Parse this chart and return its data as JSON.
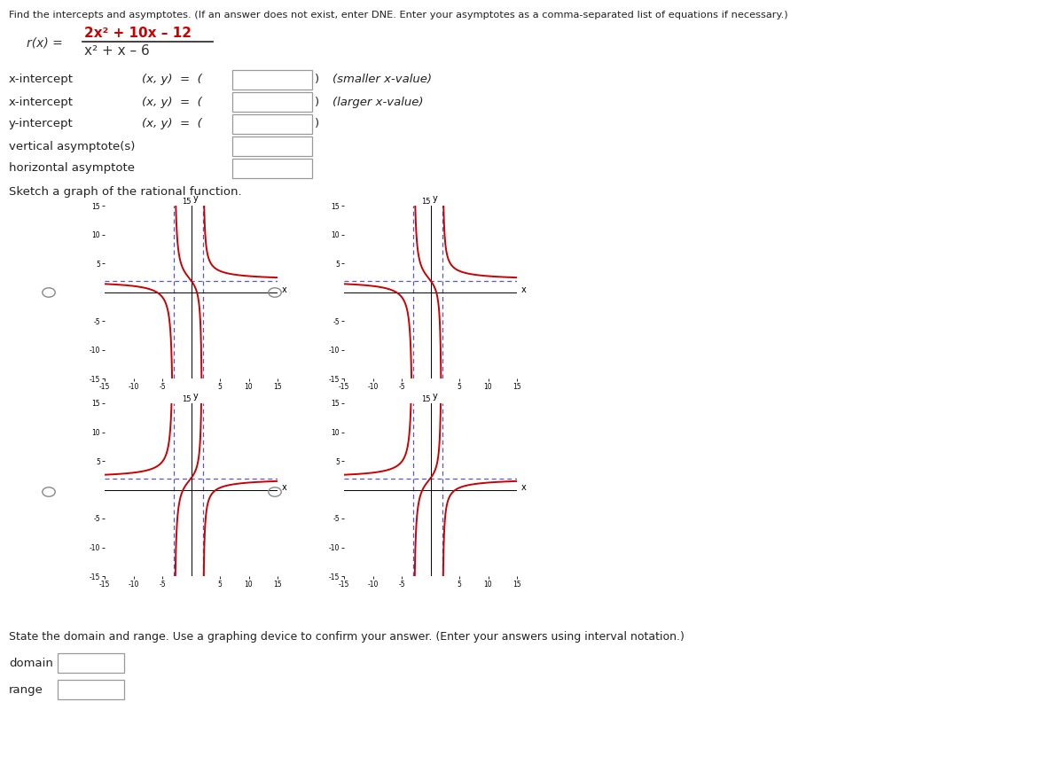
{
  "title_text": "Find the intercepts and asymptotes. (If an answer does not exist, enter DNE. Enter your asymptotes as a comma-separated list of equations if necessary.)",
  "func_numerator_text": "2x² + 10x – 12",
  "func_denominator_text": "x² + x – 6",
  "rows": [
    {
      "label": "x-intercept",
      "xy_label": "(x, y) =",
      "suffix": "(smaller x-value)"
    },
    {
      "label": "x-intercept",
      "xy_label": "(x, y) =",
      "suffix": "(larger x-value)"
    },
    {
      "label": "y-intercept",
      "xy_label": "(x, y) =",
      "suffix": ""
    },
    {
      "label": "vertical asymptote(s)",
      "xy_label": "",
      "suffix": ""
    },
    {
      "label": "horizontal asymptote",
      "xy_label": "",
      "suffix": ""
    }
  ],
  "sketch_label": "Sketch a graph of the rational function.",
  "domain_label": "domain",
  "range_label": "range",
  "state_label": "State the domain and range. Use a graphing device to confirm your answer. (Enter your answers using interval notation.)",
  "vert_asym": [
    -3,
    2
  ],
  "horiz_asym": 2,
  "xlim": [
    -15,
    15
  ],
  "ylim": [
    -15,
    15
  ],
  "xticks": [
    -15,
    -10,
    -5,
    5,
    10,
    15
  ],
  "yticks": [
    -15,
    -10,
    -5,
    5,
    10,
    15
  ],
  "curve_color": "#cc0000",
  "asym_color": "#5555cc",
  "bg_color": "#ffffff"
}
